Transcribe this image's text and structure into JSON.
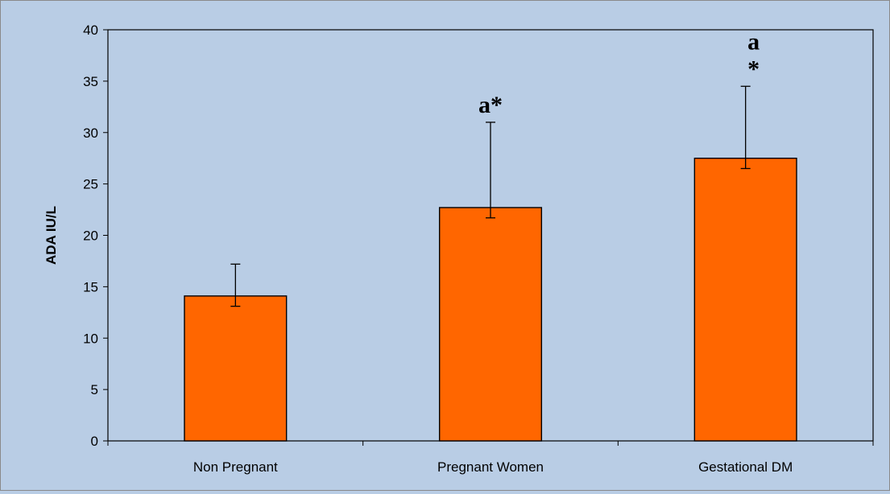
{
  "chart_data": {
    "type": "bar",
    "title": "",
    "xlabel": "",
    "ylabel": "ADA IU/L",
    "ylim": [
      0,
      40
    ],
    "yticks": [
      0,
      5,
      10,
      15,
      20,
      25,
      30,
      35,
      40
    ],
    "grid": false,
    "legend": "none",
    "categories": [
      "Non Pregnant",
      "Pregnant Women",
      "Gestational DM"
    ],
    "values": [
      14.1,
      22.7,
      27.5
    ],
    "error_upper": [
      17.2,
      31.0,
      34.5
    ],
    "error_lower": [
      13.1,
      21.7,
      26.5
    ],
    "annotations": [
      {
        "category_index": 1,
        "lines": [
          "a*"
        ]
      },
      {
        "category_index": 2,
        "lines": [
          "a",
          "*"
        ]
      }
    ],
    "colors": {
      "bar_fill": "#ff6600",
      "bar_stroke": "#000000",
      "background": "#b9cde5",
      "axis": "#000000"
    }
  }
}
